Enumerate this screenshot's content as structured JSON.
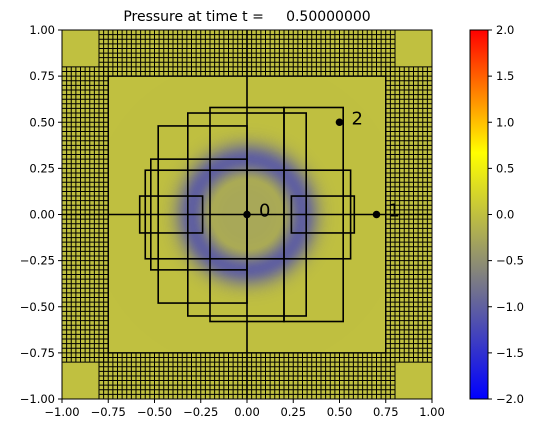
{
  "chart_data": {
    "type": "heatmap",
    "title": "Pressure at time t =     0.50000000",
    "xlabel": "",
    "ylabel": "",
    "xlim": [
      -1.0,
      1.0
    ],
    "ylim": [
      -1.0,
      1.0
    ],
    "x_ticks": [
      "−1.00",
      "−0.75",
      "−0.50",
      "−0.25",
      "0.00",
      "0.25",
      "0.50",
      "0.75",
      "1.00"
    ],
    "y_ticks": [
      "−1.00",
      "−0.75",
      "−0.50",
      "−0.25",
      "0.00",
      "0.25",
      "0.50",
      "0.75",
      "1.00"
    ],
    "colorbar": {
      "range": [
        -2.0,
        2.0
      ],
      "ticks": [
        "−2.0",
        "−1.5",
        "−1.0",
        "−0.5",
        "0.0",
        "0.5",
        "1.0",
        "1.5",
        "2.0"
      ],
      "colors": [
        "#0000ff",
        "#808080",
        "#ffff00",
        "#ff0000"
      ]
    },
    "field": {
      "background_value": 0.0,
      "ring_radius": 0.3,
      "ring_width": 0.09,
      "ring_min_value": -1.0,
      "center_value": -0.25
    },
    "gauges": [
      {
        "label": "0",
        "x": 0.0,
        "y": 0.0
      },
      {
        "label": "1",
        "x": 0.7,
        "y": 0.0
      },
      {
        "label": "2",
        "x": 0.5,
        "y": 0.5
      }
    ],
    "grid_patches": [
      {
        "x0": -0.2,
        "y0": -0.58,
        "x1": 0.2,
        "y1": 0.58
      },
      {
        "x0": -0.32,
        "y0": -0.55,
        "x1": 0.32,
        "y1": 0.55
      },
      {
        "x0": -0.48,
        "y0": -0.48,
        "x1": 0.0,
        "y1": 0.48
      },
      {
        "x0": -0.52,
        "y0": -0.3,
        "x1": 0.0,
        "y1": 0.3
      },
      {
        "x0": -0.55,
        "y0": -0.24,
        "x1": 0.0,
        "y1": 0.24
      },
      {
        "x0": -0.58,
        "y0": -0.1,
        "x1": -0.24,
        "y1": 0.1
      },
      {
        "x0": 0.2,
        "y0": -0.58,
        "x1": 0.52,
        "y1": 0.58
      },
      {
        "x0": 0.0,
        "y0": -0.24,
        "x1": 0.56,
        "y1": 0.24
      },
      {
        "x0": 0.24,
        "y0": -0.1,
        "x1": 0.58,
        "y1": 0.1
      }
    ]
  }
}
